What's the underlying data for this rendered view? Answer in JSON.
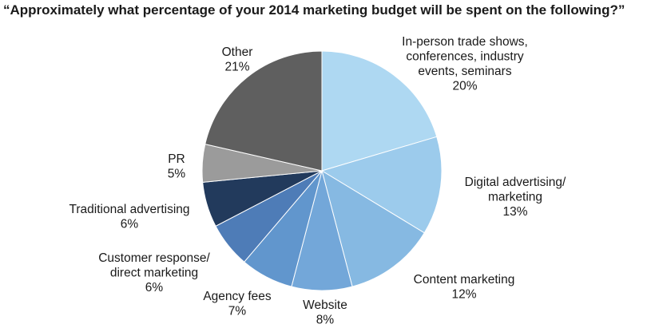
{
  "chart_data": {
    "type": "pie",
    "title": "“Approximately what percentage of your 2014 marketing budget will be spent on the following?”",
    "slices": [
      {
        "label": [
          "In-person trade shows,",
          "conferences, industry",
          "events, seminars"
        ],
        "value": 20,
        "value_label": "20%",
        "color": "#aed8f2"
      },
      {
        "label": [
          "Digital advertising/",
          "marketing"
        ],
        "value": 13,
        "value_label": "13%",
        "color": "#9ccbec"
      },
      {
        "label": [
          "Content marketing"
        ],
        "value": 12,
        "value_label": "12%",
        "color": "#86b9e2"
      },
      {
        "label": [
          "Website"
        ],
        "value": 8,
        "value_label": "8%",
        "color": "#73a7d9"
      },
      {
        "label": [
          "Agency fees"
        ],
        "value": 7,
        "value_label": "7%",
        "color": "#6196cd"
      },
      {
        "label": [
          "Customer response/",
          "direct marketing"
        ],
        "value": 6,
        "value_label": "6%",
        "color": "#4e7cb7"
      },
      {
        "label": [
          "Traditional advertising"
        ],
        "value": 6,
        "value_label": "6%",
        "color": "#223a5c"
      },
      {
        "label": [
          "PR"
        ],
        "value": 5,
        "value_label": "5%",
        "color": "#9b9b9b"
      },
      {
        "label": [
          "Other"
        ],
        "value": 21,
        "value_label": "21%",
        "color": "#5f5f5f"
      }
    ],
    "start_position": "top",
    "direction": "clockwise"
  }
}
